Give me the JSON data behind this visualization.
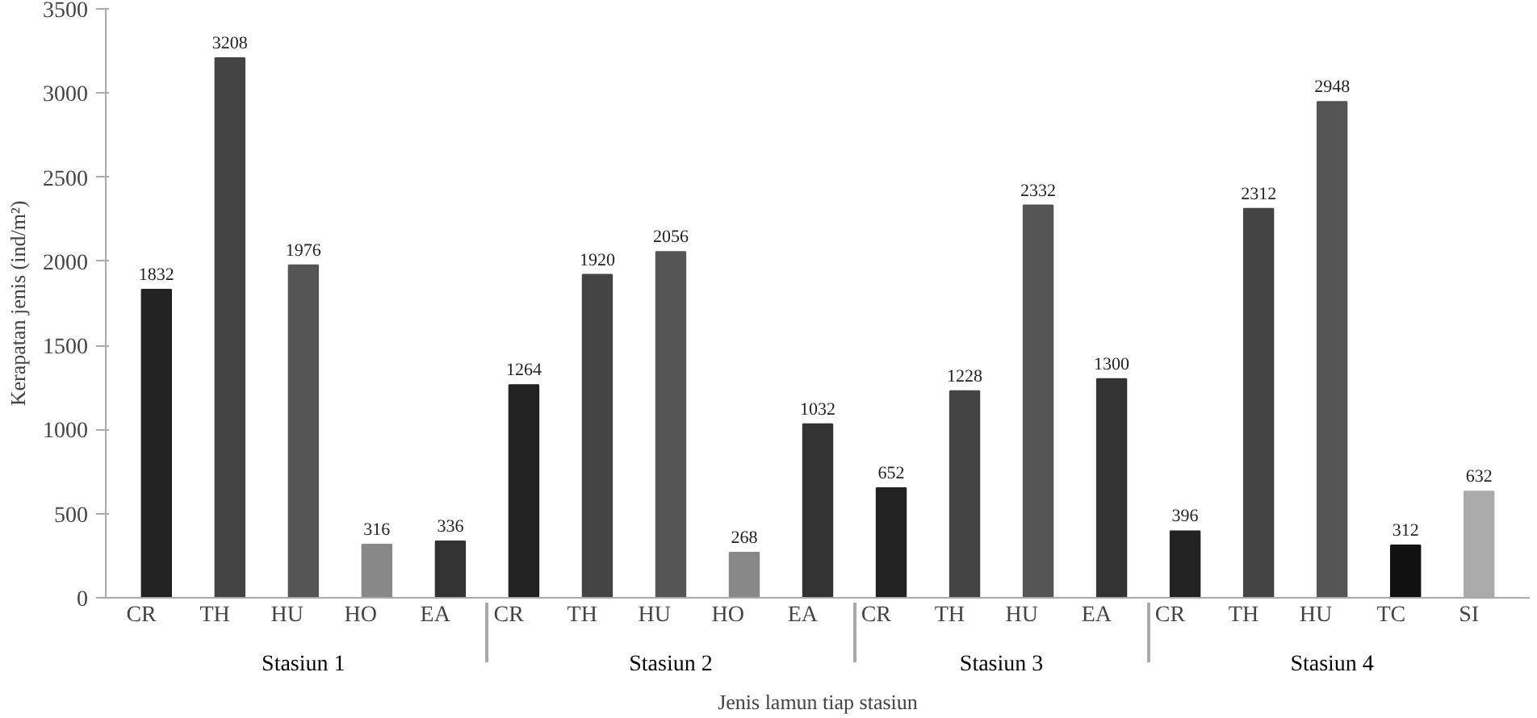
{
  "chart_data": {
    "type": "bar",
    "ylabel": "Kerapatan jenis (ind/m²)",
    "xlabel": "Jenis lamun tiap stasiun",
    "categories": [
      "CR",
      "TH",
      "HU",
      "HO",
      "EA",
      "CR",
      "TH",
      "HU",
      "HO",
      "EA",
      "CR",
      "TH",
      "HU",
      "EA",
      "CR",
      "TH",
      "HU",
      "TC",
      "SI"
    ],
    "annotations": [
      "Stasiun 1",
      "Stasiun 2",
      "Stasiun 3",
      "Stasiun 4"
    ],
    "values": [
      1832,
      3208,
      1976,
      316,
      336,
      1264,
      1920,
      2056,
      268,
      1032,
      652,
      1228,
      2332,
      1300,
      396,
      2312,
      2948,
      312,
      632
    ],
    "colors": [
      "#222222",
      "#444444",
      "#555555",
      "#888888",
      "#333333",
      "#222222",
      "#444444",
      "#555555",
      "#888888",
      "#333333",
      "#222222",
      "#444444",
      "#555555",
      "#333333",
      "#222222",
      "#444444",
      "#555555",
      "#111111",
      "#aaaaaa"
    ],
    "ylim": [
      0,
      3500
    ],
    "yticks": [
      0,
      500,
      1000,
      1500,
      2000,
      2500,
      3000,
      3500
    ],
    "data_labels": true,
    "grid": false
  }
}
